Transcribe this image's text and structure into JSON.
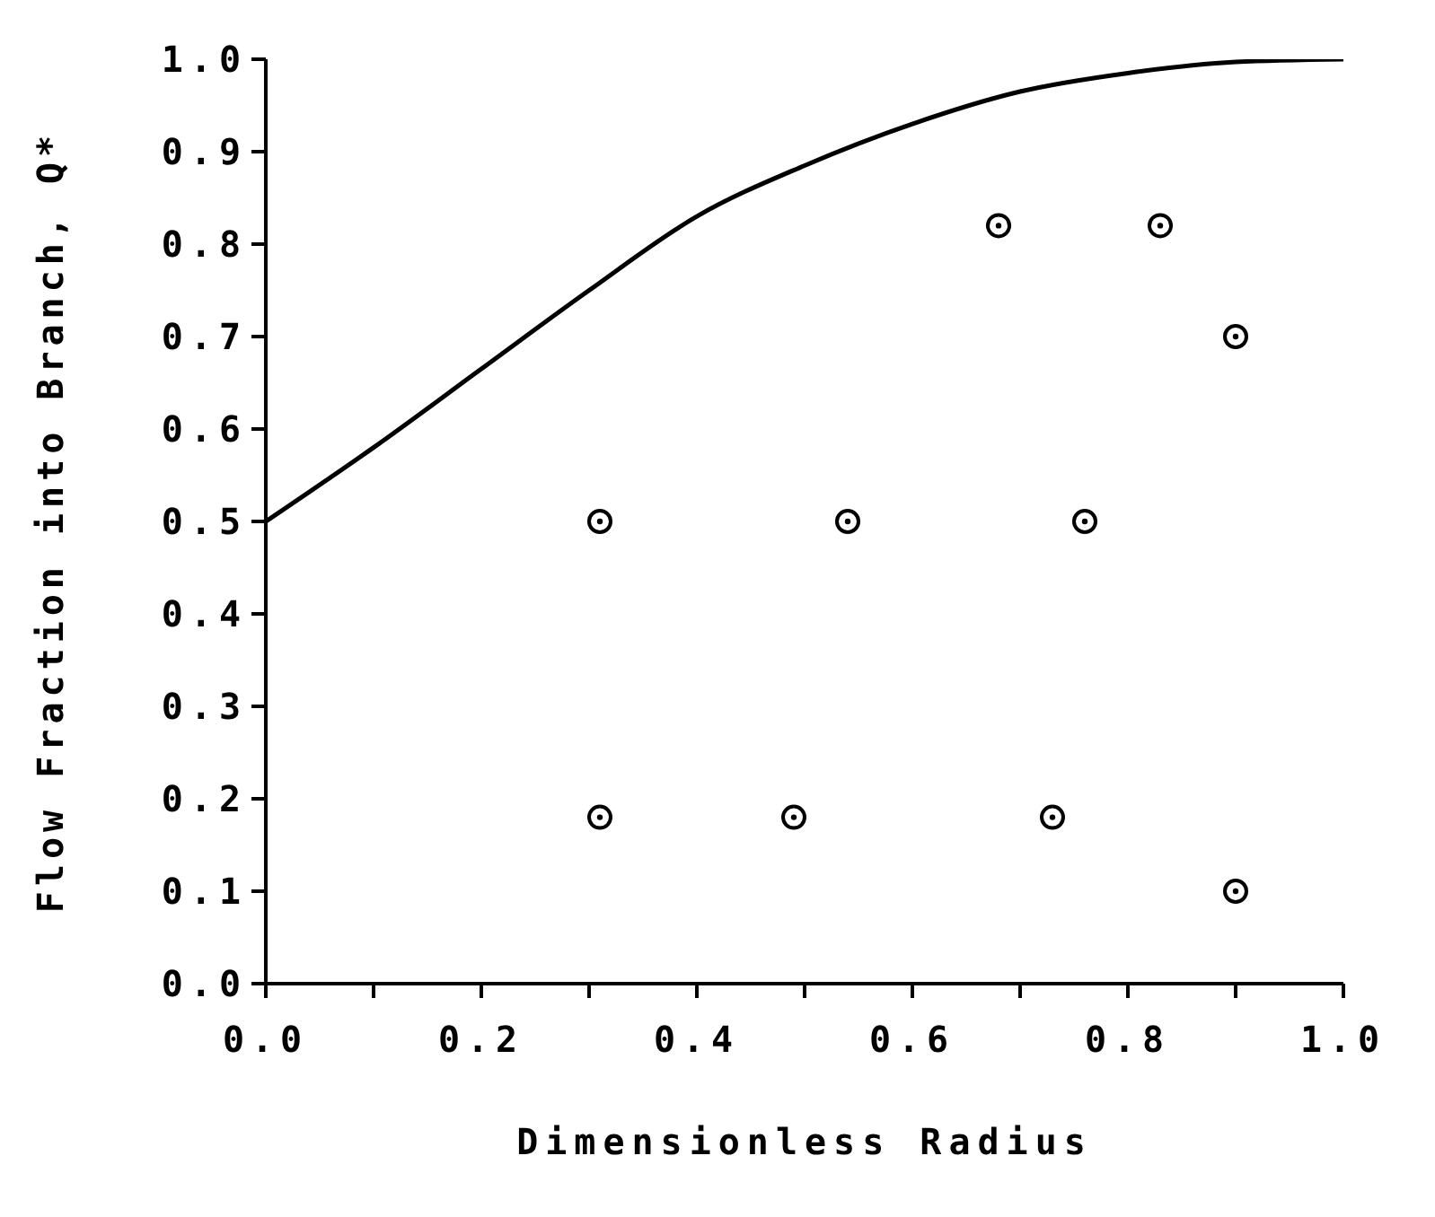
{
  "chart_data": {
    "type": "scatter",
    "xlabel": "Dimensionless Radius",
    "ylabel": "Flow Fraction into Branch, Q*",
    "xlim": [
      0,
      1
    ],
    "ylim": [
      0,
      1
    ],
    "xticks": [
      {
        "value": 0,
        "label": "0.0"
      },
      {
        "value": 0.1,
        "label": null
      },
      {
        "value": 0.2,
        "label": "0.2"
      },
      {
        "value": 0.3,
        "label": null
      },
      {
        "value": 0.4,
        "label": "0.4"
      },
      {
        "value": 0.5,
        "label": null
      },
      {
        "value": 0.6,
        "label": "0.6"
      },
      {
        "value": 0.7,
        "label": null
      },
      {
        "value": 0.8,
        "label": "0.8"
      },
      {
        "value": 0.9,
        "label": null
      },
      {
        "value": 1,
        "label": "1.0"
      }
    ],
    "yticks": [
      {
        "value": 0,
        "label": "0.0"
      },
      {
        "value": 0.1,
        "label": "0.1"
      },
      {
        "value": 0.2,
        "label": "0.2"
      },
      {
        "value": 0.3,
        "label": "0.3"
      },
      {
        "value": 0.4,
        "label": "0.4"
      },
      {
        "value": 0.5,
        "label": "0.5"
      },
      {
        "value": 0.6,
        "label": "0.6"
      },
      {
        "value": 0.7,
        "label": "0.7"
      },
      {
        "value": 0.8,
        "label": "0.8"
      },
      {
        "value": 0.9,
        "label": "0.9"
      },
      {
        "value": 1,
        "label": "1.0"
      }
    ],
    "grid": false,
    "series": [
      {
        "type": "line",
        "color": "#000000",
        "line_style": "solid",
        "marker": "none",
        "x": [
          0,
          0.1,
          0.2,
          0.3,
          0.4,
          0.5,
          0.6,
          0.7,
          0.8,
          0.9,
          1.0
        ],
        "values": [
          0.5,
          0.58,
          0.665,
          0.75,
          0.83,
          0.885,
          0.93,
          0.965,
          0.985,
          0.997,
          1.0
        ]
      },
      {
        "color": "#000000",
        "marker": "circle",
        "x": [
          0.31,
          0.54,
          0.76,
          0.31,
          0.49,
          0.73,
          0.68,
          0.83,
          0.9,
          0.9
        ],
        "values": [
          0.5,
          0.5,
          0.5,
          0.18,
          0.18,
          0.18,
          0.82,
          0.82,
          0.7,
          0.1
        ]
      }
    ]
  }
}
